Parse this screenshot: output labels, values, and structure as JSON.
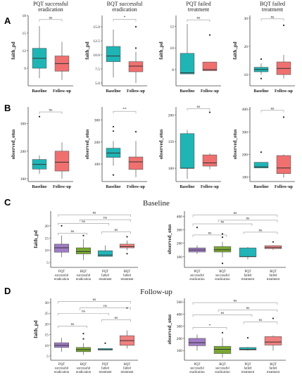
{
  "colors": {
    "baseline": "#1fb5b5",
    "followup": "#f07070",
    "pqt_success": "#a07cc5",
    "bqt_success": "#79a832",
    "pqt_failed": "#22b5b8",
    "bqt_failed": "#f08080",
    "axis": "#444444"
  },
  "panels": {
    "A": {
      "label": "A"
    },
    "B": {
      "label": "B"
    },
    "C": {
      "label": "C",
      "section_title": "Baseline"
    },
    "D": {
      "label": "D",
      "section_title": "Follow-up"
    }
  },
  "chart_data": [
    {
      "id": "A1",
      "type": "box",
      "title": "PQT successful\neradication",
      "ylabel": "faith_pd",
      "ylim": [
        6,
        18
      ],
      "yticks": [
        9,
        12,
        15,
        18
      ],
      "categories": [
        "Baseline",
        "Follow-up"
      ],
      "boxes": [
        {
          "q1": 9.0,
          "median": 10.7,
          "q3": 12.4,
          "lo": 7.3,
          "hi": 16.2,
          "outliers": []
        },
        {
          "q1": 8.5,
          "median": 9.8,
          "q3": 11.1,
          "lo": 7.0,
          "hi": 13.5,
          "outliers": []
        }
      ],
      "sig": [
        {
          "from": 0,
          "to": 1,
          "label": "ns",
          "y": 17.3
        }
      ]
    },
    {
      "id": "A2",
      "type": "box",
      "title": "BQT successful\neradication",
      "ylabel": "faith_pd",
      "ylim": [
        4.5,
        17
      ],
      "yticks": [
        5.0,
        7.5,
        10.0,
        12.5,
        15.0
      ],
      "categories": [
        "Baseline",
        "Follow-up"
      ],
      "boxes": [
        {
          "q1": 8.8,
          "median": 9.8,
          "q3": 11.5,
          "lo": 6.0,
          "hi": 14.5,
          "outliers": []
        },
        {
          "q1": 7.0,
          "median": 8.0,
          "q3": 8.8,
          "lo": 5.0,
          "hi": 10.5,
          "outliers": [
            15.0,
            11.2
          ]
        }
      ],
      "sig": [
        {
          "from": 0,
          "to": 1,
          "label": "*",
          "y": 16.3
        }
      ]
    },
    {
      "id": "A3",
      "type": "box",
      "title": "PQT failed\ntreatment",
      "ylabel": "faith_pd",
      "ylim": [
        6.5,
        13
      ],
      "yticks": [
        8,
        10,
        12
      ],
      "categories": [
        "Baseline",
        "Follow-up"
      ],
      "boxes": [
        {
          "q1": 7.6,
          "median": 7.7,
          "q3": 9.5,
          "lo": 7.6,
          "hi": 12.2,
          "outliers": []
        },
        {
          "q1": 7.9,
          "median": 8.0,
          "q3": 8.7,
          "lo": 7.9,
          "hi": 8.7,
          "outliers": [
            11.2
          ]
        }
      ],
      "sig": [
        {
          "from": 0,
          "to": 1,
          "label": "ns",
          "y": 12.6
        }
      ]
    },
    {
      "id": "A4",
      "type": "box",
      "title": "BQT failed\ntreatment",
      "ylabel": "faith_pd",
      "ylim": [
        6,
        31
      ],
      "yticks": [
        10,
        20,
        30
      ],
      "categories": [
        "Baseline",
        "Follow-up"
      ],
      "boxes": [
        {
          "q1": 11.0,
          "median": 11.8,
          "q3": 12.6,
          "lo": 10.0,
          "hi": 14.0,
          "outliers": [
            15.5,
            8.6
          ]
        },
        {
          "q1": 10.0,
          "median": 12.2,
          "q3": 14.5,
          "lo": 8.6,
          "hi": 17.0,
          "outliers": [
            27.5
          ]
        }
      ],
      "sig": [
        {
          "from": 0,
          "to": 1,
          "label": "ns",
          "y": 29.8
        }
      ]
    },
    {
      "id": "B1",
      "type": "box",
      "ylabel": "observed_otus",
      "ylim": [
        90,
        360
      ],
      "yticks": [
        100,
        200,
        300
      ],
      "categories": [
        "Baseline",
        "Follow-up"
      ],
      "boxes": [
        {
          "q1": 135,
          "median": 152,
          "q3": 170,
          "lo": 118,
          "hi": 185,
          "outliers": [
            325
          ]
        },
        {
          "q1": 128,
          "median": 160,
          "q3": 200,
          "lo": 100,
          "hi": 232,
          "outliers": []
        }
      ],
      "sig": [
        {
          "from": 0,
          "to": 1,
          "label": "ns",
          "y": 342
        }
      ]
    },
    {
      "id": "B2",
      "type": "box",
      "ylabel": "observed_otus",
      "ylim": [
        20,
        360
      ],
      "yticks": [
        100,
        200,
        300
      ],
      "categories": [
        "Baseline",
        "Follow-up"
      ],
      "boxes": [
        {
          "q1": 130,
          "median": 150,
          "q3": 172,
          "lo": 92,
          "hi": 205,
          "outliers": [
            270,
            250,
            50
          ]
        },
        {
          "q1": 75,
          "median": 110,
          "q3": 132,
          "lo": 40,
          "hi": 205,
          "outliers": [
            247
          ]
        }
      ],
      "sig": [
        {
          "from": 0,
          "to": 1,
          "label": "**",
          "y": 340
        }
      ]
    },
    {
      "id": "B3",
      "type": "box",
      "ylabel": "observed_otus",
      "ylim": [
        75,
        215
      ],
      "yticks": [
        100,
        150,
        200
      ],
      "categories": [
        "Baseline",
        "Follow-up"
      ],
      "boxes": [
        {
          "q1": 100,
          "median": 100,
          "q3": 165,
          "lo": 80,
          "hi": 172,
          "outliers": []
        },
        {
          "q1": 104,
          "median": 110,
          "q3": 125,
          "lo": 98,
          "hi": 128,
          "outliers": [
            205
          ]
        }
      ],
      "sig": [
        {
          "from": 0,
          "to": 1,
          "label": "ns",
          "y": 212
        }
      ]
    },
    {
      "id": "B4",
      "type": "box",
      "ylabel": "observed_otus",
      "ylim": [
        80,
        410
      ],
      "yticks": [
        100,
        200,
        300,
        400
      ],
      "categories": [
        "Baseline",
        "Follow-up"
      ],
      "boxes": [
        {
          "q1": 140,
          "median": 145,
          "q3": 165,
          "lo": 140,
          "hi": 165,
          "outliers": [
            210
          ]
        },
        {
          "q1": 115,
          "median": 140,
          "q3": 195,
          "lo": 97,
          "hi": 200,
          "outliers": [
            365
          ]
        }
      ],
      "sig": [
        {
          "from": 0,
          "to": 1,
          "label": "ns",
          "y": 395
        }
      ]
    },
    {
      "id": "C1",
      "type": "box",
      "ylabel": "faith_pd",
      "ylim": [
        3,
        26
      ],
      "yticks": [
        5,
        10,
        15,
        20
      ],
      "categories": [
        "PQT\nsuccessful\neradication",
        "BQT\nsuccessful\neradication",
        "PQT\nfailed\ntreatment",
        "BQT\nfailed\ntreatment"
      ],
      "colorKeys": [
        "pqt_success",
        "bqt_success",
        "pqt_failed",
        "bqt_failed"
      ],
      "boxes": [
        {
          "q1": 9.2,
          "median": 11.0,
          "q3": 12.5,
          "lo": 7.2,
          "hi": 16.0,
          "outliers": [
            20.0
          ]
        },
        {
          "q1": 8.5,
          "median": 9.5,
          "q3": 11.0,
          "lo": 6.0,
          "hi": 14.5,
          "outliers": [
            16.0
          ]
        },
        {
          "q1": 7.5,
          "median": 8.0,
          "q3": 9.8,
          "lo": 7.5,
          "hi": 12.0,
          "outliers": []
        },
        {
          "q1": 11.0,
          "median": 11.5,
          "q3": 12.5,
          "lo": 10.0,
          "hi": 14.0,
          "outliers": [
            15.5,
            8.6
          ]
        }
      ],
      "sig": [
        {
          "from": 0,
          "to": 1,
          "label": "ns",
          "y": 17.0
        },
        {
          "from": 2,
          "to": 3,
          "label": "ns",
          "y": 17.5
        },
        {
          "from": 0,
          "to": 2,
          "label": "ns",
          "y": 21.0
        },
        {
          "from": 1,
          "to": 3,
          "label": "ns",
          "y": 22.5
        },
        {
          "from": 0,
          "to": 3,
          "label": "ns",
          "y": 24.5
        }
      ]
    },
    {
      "id": "C2",
      "type": "box",
      "ylabel": "observed_otus",
      "ylim": [
        20,
        440
      ],
      "yticks": [
        100,
        200,
        300,
        400
      ],
      "categories": [
        "PQT\nsuccessful\neradication",
        "BQT\nsuccessful\neradication",
        "PQT\nfailed\ntreatment",
        "BQT\nfailed\ntreatment"
      ],
      "colorKeys": [
        "pqt_success",
        "bqt_success",
        "pqt_failed",
        "bqt_failed"
      ],
      "boxes": [
        {
          "q1": 135,
          "median": 150,
          "q3": 165,
          "lo": 120,
          "hi": 185,
          "outliers": [
            318
          ]
        },
        {
          "q1": 135,
          "median": 152,
          "q3": 175,
          "lo": 95,
          "hi": 210,
          "outliers": [
            270,
            245,
            50
          ]
        },
        {
          "q1": 100,
          "median": 100,
          "q3": 165,
          "lo": 80,
          "hi": 172,
          "outliers": []
        },
        {
          "q1": 160,
          "median": 168,
          "q3": 182,
          "lo": 150,
          "hi": 185,
          "outliers": [
            210
          ]
        }
      ],
      "sig": [
        {
          "from": 0,
          "to": 1,
          "label": "ns",
          "y": 262
        },
        {
          "from": 2,
          "to": 3,
          "label": "ns",
          "y": 283
        },
        {
          "from": 0,
          "to": 2,
          "label": "ns",
          "y": 345
        },
        {
          "from": 1,
          "to": 3,
          "label": "ns",
          "y": 372
        },
        {
          "from": 0,
          "to": 3,
          "label": "ns",
          "y": 410
        }
      ]
    },
    {
      "id": "D1",
      "type": "box",
      "ylabel": "faith_pd",
      "ylim": [
        3,
        32
      ],
      "yticks": [
        5,
        10,
        15,
        20,
        25,
        30
      ],
      "categories": [
        "PQT\nsuccessful\neradication",
        "BQT\nsuccessful\neradication",
        "PQT\nfailed\ntreatment",
        "BQT\nfailed\ntreatment"
      ],
      "colorKeys": [
        "pqt_success",
        "bqt_success",
        "pqt_failed",
        "bqt_failed"
      ],
      "boxes": [
        {
          "q1": 9.0,
          "median": 10.0,
          "q3": 11.2,
          "lo": 7.0,
          "hi": 13.5,
          "outliers": []
        },
        {
          "q1": 7.0,
          "median": 8.0,
          "q3": 9.0,
          "lo": 5.5,
          "hi": 11.0,
          "outliers": [
            15.5,
            13.0
          ]
        },
        {
          "q1": 7.8,
          "median": 8.0,
          "q3": 8.5,
          "lo": 7.8,
          "hi": 8.5,
          "outliers": [
            11.0
          ]
        },
        {
          "q1": 10.0,
          "median": 12.2,
          "q3": 14.5,
          "lo": 8.5,
          "hi": 17.0,
          "outliers": [
            27.5
          ]
        }
      ],
      "sig": [
        {
          "from": 0,
          "to": 1,
          "label": "ns",
          "y": 19.0
        },
        {
          "from": 2,
          "to": 3,
          "label": "ns",
          "y": 22.0
        },
        {
          "from": 0,
          "to": 2,
          "label": "ns",
          "y": 25.0
        },
        {
          "from": 1,
          "to": 3,
          "label": "ns",
          "y": 27.5
        },
        {
          "from": 0,
          "to": 3,
          "label": "ns",
          "y": 30.5
        }
      ]
    },
    {
      "id": "D2",
      "type": "box",
      "ylabel": "observed_otus",
      "ylim": [
        20,
        530
      ],
      "yticks": [
        100,
        200,
        300,
        400,
        500
      ],
      "categories": [
        "PQT\nsuccessful\neradication",
        "BQT\nsuccessful\neradication",
        "PQT\nfailed\ntreatment",
        "BQT\nfailed\ntreatment"
      ],
      "colorKeys": [
        "pqt_success",
        "bqt_success",
        "pqt_failed",
        "bqt_failed"
      ],
      "boxes": [
        {
          "q1": 140,
          "median": 165,
          "q3": 200,
          "lo": 100,
          "hi": 232,
          "outliers": []
        },
        {
          "q1": 75,
          "median": 110,
          "q3": 135,
          "lo": 40,
          "hi": 205,
          "outliers": [
            247
          ]
        },
        {
          "q1": 105,
          "median": 110,
          "q3": 125,
          "lo": 98,
          "hi": 130,
          "outliers": [
            205
          ]
        },
        {
          "q1": 145,
          "median": 170,
          "q3": 215,
          "lo": 100,
          "hi": 225,
          "outliers": [
            365
          ]
        }
      ],
      "sig": [
        {
          "from": 0,
          "to": 1,
          "label": "*",
          "y": 290
        },
        {
          "from": 2,
          "to": 3,
          "label": "ns",
          "y": 335
        },
        {
          "from": 0,
          "to": 2,
          "label": "ns",
          "y": 395
        },
        {
          "from": 1,
          "to": 3,
          "label": "ns",
          "y": 435
        },
        {
          "from": 0,
          "to": 3,
          "label": "ns",
          "y": 495
        }
      ]
    }
  ]
}
